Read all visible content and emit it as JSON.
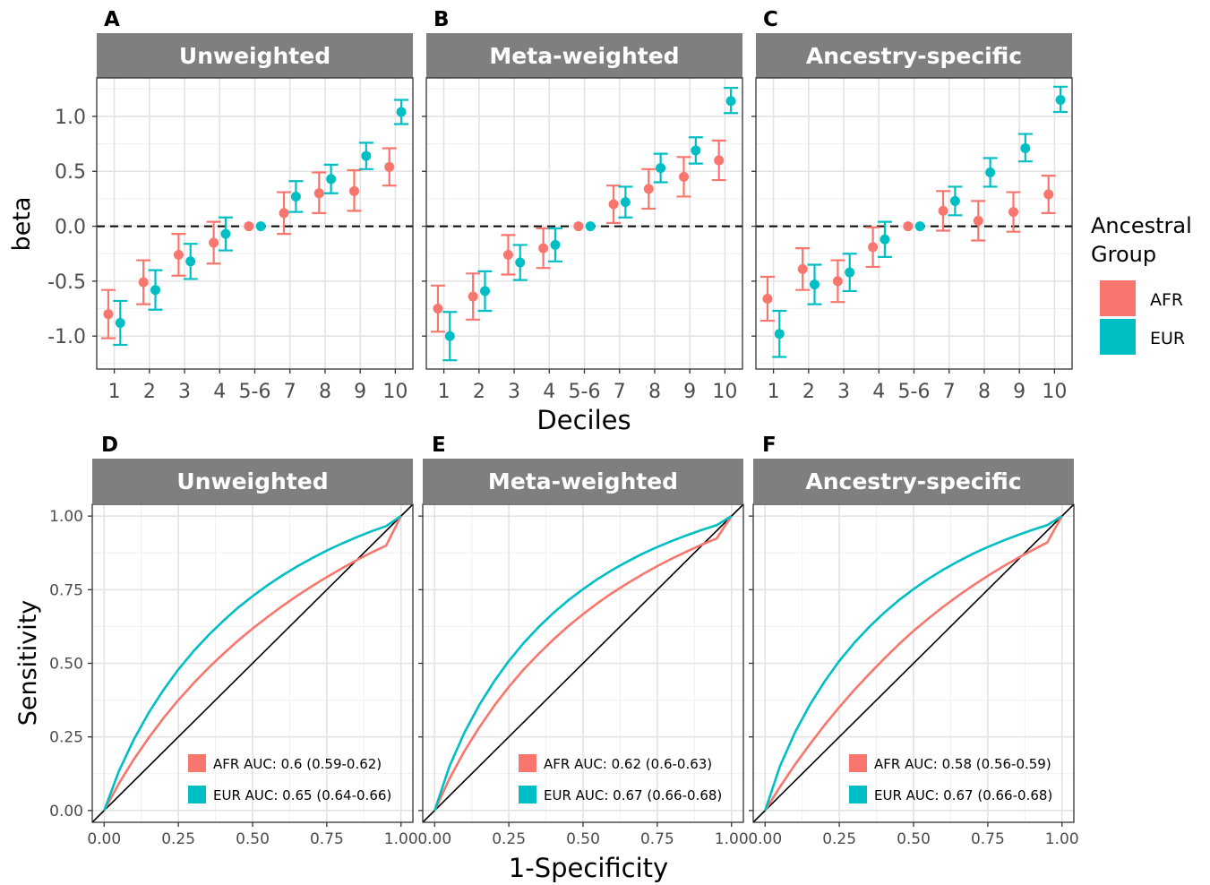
{
  "figure": {
    "top_xlabel": "Deciles",
    "top_ylabel": "beta",
    "bottom_xlabel": "1-Specificity",
    "bottom_ylabel": "Sensitivity",
    "legend": {
      "title_line1": "Ancestral",
      "title_line2": "Group",
      "items": [
        {
          "label": "AFR",
          "color": "#F8766D"
        },
        {
          "label": "EUR",
          "color": "#00BFC4"
        }
      ]
    }
  },
  "chart_data": [
    {
      "panel": "A",
      "strip": "Unweighted",
      "type": "scatter",
      "error_bars": true,
      "categories": [
        "1",
        "2",
        "3",
        "4",
        "5-6",
        "7",
        "8",
        "9",
        "10"
      ],
      "ylim": [
        -1.3,
        1.35
      ],
      "yticks": [
        -1.0,
        -0.5,
        0.0,
        0.5,
        1.0
      ],
      "ytick_labels": [
        "-1.0",
        "-0.5",
        "0.0",
        "0.5",
        "1.0"
      ],
      "reference_line": 0,
      "series": [
        {
          "name": "AFR",
          "color": "#F8766D",
          "values": [
            -0.8,
            -0.51,
            -0.26,
            -0.15,
            0.0,
            0.12,
            0.3,
            0.32,
            0.54
          ],
          "lower": [
            -1.02,
            -0.71,
            -0.45,
            -0.34,
            0.0,
            -0.07,
            0.12,
            0.14,
            0.37
          ],
          "upper": [
            -0.58,
            -0.31,
            -0.07,
            0.04,
            0.0,
            0.31,
            0.49,
            0.51,
            0.71
          ]
        },
        {
          "name": "EUR",
          "color": "#00BFC4",
          "values": [
            -0.88,
            -0.58,
            -0.32,
            -0.07,
            0.0,
            0.27,
            0.43,
            0.64,
            1.04
          ],
          "lower": [
            -1.08,
            -0.76,
            -0.48,
            -0.22,
            0.0,
            0.13,
            0.3,
            0.52,
            0.93
          ],
          "upper": [
            -0.68,
            -0.4,
            -0.16,
            0.08,
            0.0,
            0.41,
            0.56,
            0.76,
            1.15
          ]
        }
      ]
    },
    {
      "panel": "B",
      "strip": "Meta-weighted",
      "type": "scatter",
      "error_bars": true,
      "categories": [
        "1",
        "2",
        "3",
        "4",
        "5-6",
        "7",
        "8",
        "9",
        "10"
      ],
      "ylim": [
        -1.3,
        1.35
      ],
      "reference_line": 0,
      "series": [
        {
          "name": "AFR",
          "color": "#F8766D",
          "values": [
            -0.75,
            -0.64,
            -0.26,
            -0.2,
            0.0,
            0.2,
            0.34,
            0.45,
            0.6
          ],
          "lower": [
            -0.96,
            -0.85,
            -0.44,
            -0.38,
            0.0,
            0.03,
            0.16,
            0.27,
            0.42
          ],
          "upper": [
            -0.54,
            -0.43,
            -0.08,
            -0.02,
            0.0,
            0.37,
            0.52,
            0.63,
            0.78
          ]
        },
        {
          "name": "EUR",
          "color": "#00BFC4",
          "values": [
            -1.0,
            -0.59,
            -0.33,
            -0.17,
            0.0,
            0.22,
            0.53,
            0.69,
            1.14
          ],
          "lower": [
            -1.22,
            -0.77,
            -0.49,
            -0.32,
            0.0,
            0.08,
            0.4,
            0.57,
            1.03
          ],
          "upper": [
            -0.78,
            -0.41,
            -0.17,
            -0.02,
            0.0,
            0.36,
            0.66,
            0.81,
            1.26
          ]
        }
      ]
    },
    {
      "panel": "C",
      "strip": "Ancestry-specific",
      "type": "scatter",
      "error_bars": true,
      "categories": [
        "1",
        "2",
        "3",
        "4",
        "5-6",
        "7",
        "8",
        "9",
        "10"
      ],
      "ylim": [
        -1.3,
        1.35
      ],
      "reference_line": 0,
      "series": [
        {
          "name": "AFR",
          "color": "#F8766D",
          "values": [
            -0.66,
            -0.39,
            -0.5,
            -0.19,
            0.0,
            0.14,
            0.05,
            0.13,
            0.29
          ],
          "lower": [
            -0.86,
            -0.58,
            -0.69,
            -0.37,
            0.0,
            -0.04,
            -0.13,
            -0.05,
            0.12
          ],
          "upper": [
            -0.46,
            -0.2,
            -0.31,
            -0.01,
            0.0,
            0.32,
            0.23,
            0.31,
            0.46
          ]
        },
        {
          "name": "EUR",
          "color": "#00BFC4",
          "values": [
            -0.98,
            -0.53,
            -0.42,
            -0.12,
            0.0,
            0.23,
            0.49,
            0.71,
            1.15
          ],
          "lower": [
            -1.19,
            -0.71,
            -0.59,
            -0.28,
            0.0,
            0.1,
            0.36,
            0.59,
            1.04
          ],
          "upper": [
            -0.77,
            -0.35,
            -0.25,
            0.04,
            0.0,
            0.36,
            0.62,
            0.84,
            1.27
          ]
        }
      ]
    },
    {
      "panel": "D",
      "strip": "Unweighted",
      "type": "line",
      "xlim": [
        -0.04,
        1.04
      ],
      "ylim": [
        -0.04,
        1.04
      ],
      "ticks": [
        0.0,
        0.25,
        0.5,
        0.75,
        1.0
      ],
      "tick_labels": [
        "0.00",
        "0.25",
        "0.50",
        "0.75",
        "1.00"
      ],
      "diagonal": true,
      "series": [
        {
          "name": "AFR",
          "color": "#F8766D",
          "legend_label": "AFR AUC: 0.6 (0.59-0.62)",
          "x": [
            0,
            0.05,
            0.1,
            0.15,
            0.2,
            0.25,
            0.3,
            0.35,
            0.4,
            0.45,
            0.5,
            0.55,
            0.6,
            0.65,
            0.7,
            0.75,
            0.8,
            0.85,
            0.9,
            0.95,
            1.0
          ],
          "y": [
            0,
            0.092,
            0.174,
            0.247,
            0.314,
            0.375,
            0.431,
            0.483,
            0.531,
            0.576,
            0.618,
            0.657,
            0.694,
            0.729,
            0.762,
            0.793,
            0.822,
            0.85,
            0.876,
            0.9,
            1.0
          ]
        },
        {
          "name": "EUR",
          "color": "#00BFC4",
          "legend_label": "EUR AUC: 0.65 (0.64-0.66)",
          "x": [
            0,
            0.05,
            0.1,
            0.15,
            0.2,
            0.25,
            0.3,
            0.35,
            0.4,
            0.45,
            0.5,
            0.55,
            0.6,
            0.65,
            0.7,
            0.75,
            0.8,
            0.85,
            0.9,
            0.95,
            1.0
          ],
          "y": [
            0,
            0.134,
            0.241,
            0.332,
            0.41,
            0.479,
            0.54,
            0.594,
            0.643,
            0.688,
            0.728,
            0.765,
            0.798,
            0.829,
            0.857,
            0.883,
            0.906,
            0.928,
            0.948,
            0.966,
            1.0
          ]
        }
      ]
    },
    {
      "panel": "E",
      "strip": "Meta-weighted",
      "type": "line",
      "xlim": [
        -0.04,
        1.04
      ],
      "ylim": [
        -0.04,
        1.04
      ],
      "ticks": [
        0.0,
        0.25,
        0.5,
        0.75,
        1.0
      ],
      "tick_labels": [
        "0.00",
        "0.25",
        "0.50",
        "0.75",
        "1.00"
      ],
      "diagonal": true,
      "series": [
        {
          "name": "AFR",
          "color": "#F8766D",
          "legend_label": "AFR AUC: 0.62 (0.6-0.63)",
          "x": [
            0,
            0.05,
            0.1,
            0.15,
            0.2,
            0.25,
            0.3,
            0.35,
            0.4,
            0.45,
            0.5,
            0.55,
            0.6,
            0.65,
            0.7,
            0.75,
            0.8,
            0.85,
            0.9,
            0.95,
            1.0
          ],
          "y": [
            0,
            0.108,
            0.201,
            0.282,
            0.355,
            0.42,
            0.479,
            0.532,
            0.581,
            0.626,
            0.667,
            0.705,
            0.74,
            0.772,
            0.802,
            0.83,
            0.856,
            0.88,
            0.903,
            0.924,
            1.0
          ]
        },
        {
          "name": "EUR",
          "color": "#00BFC4",
          "legend_label": "EUR AUC: 0.67 (0.66-0.68)",
          "x": [
            0,
            0.05,
            0.1,
            0.15,
            0.2,
            0.25,
            0.3,
            0.35,
            0.4,
            0.45,
            0.5,
            0.55,
            0.6,
            0.65,
            0.7,
            0.75,
            0.8,
            0.85,
            0.9,
            0.95,
            1.0
          ],
          "y": [
            0,
            0.15,
            0.264,
            0.358,
            0.438,
            0.508,
            0.569,
            0.623,
            0.671,
            0.714,
            0.752,
            0.787,
            0.818,
            0.846,
            0.872,
            0.895,
            0.916,
            0.935,
            0.953,
            0.969,
            1.0
          ]
        }
      ]
    },
    {
      "panel": "F",
      "strip": "Ancestry-specific",
      "type": "line",
      "xlim": [
        -0.04,
        1.04
      ],
      "ylim": [
        -0.04,
        1.04
      ],
      "ticks": [
        0.0,
        0.25,
        0.5,
        0.75,
        1.0
      ],
      "tick_labels": [
        "0.00",
        "0.25",
        "0.50",
        "0.75",
        "1.00"
      ],
      "diagonal": true,
      "series": [
        {
          "name": "AFR",
          "color": "#F8766D",
          "legend_label": "AFR AUC: 0.58 (0.56-0.59)",
          "x": [
            0,
            0.05,
            0.1,
            0.15,
            0.2,
            0.25,
            0.3,
            0.35,
            0.4,
            0.45,
            0.5,
            0.55,
            0.6,
            0.65,
            0.7,
            0.75,
            0.8,
            0.85,
            0.9,
            0.95,
            1.0
          ],
          "y": [
            0,
            0.08,
            0.155,
            0.224,
            0.29,
            0.351,
            0.409,
            0.463,
            0.515,
            0.564,
            0.61,
            0.652,
            0.692,
            0.729,
            0.764,
            0.797,
            0.828,
            0.857,
            0.884,
            0.91,
            1.0
          ]
        },
        {
          "name": "EUR",
          "color": "#00BFC4",
          "legend_label": "EUR AUC: 0.67 (0.66-0.68)",
          "x": [
            0,
            0.05,
            0.1,
            0.15,
            0.2,
            0.25,
            0.3,
            0.35,
            0.4,
            0.45,
            0.5,
            0.55,
            0.6,
            0.65,
            0.7,
            0.75,
            0.8,
            0.85,
            0.9,
            0.95,
            1.0
          ],
          "y": [
            0,
            0.15,
            0.264,
            0.358,
            0.438,
            0.508,
            0.569,
            0.623,
            0.671,
            0.714,
            0.752,
            0.787,
            0.818,
            0.846,
            0.872,
            0.895,
            0.916,
            0.935,
            0.953,
            0.969,
            1.0
          ]
        }
      ]
    }
  ]
}
